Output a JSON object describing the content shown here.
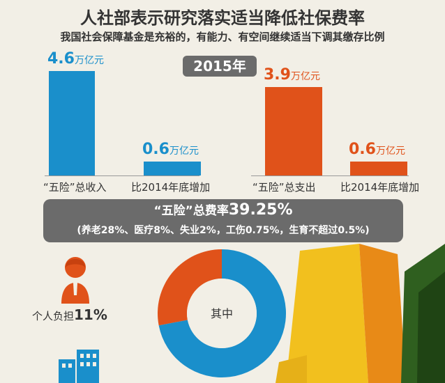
{
  "title": "人社部表示研究落实适当降低社保费率",
  "subtitle": "我国社会保障基金是充裕的，有能力、有空间继续适当下调其缴存比例",
  "year_badge": "2015年",
  "colors": {
    "blue": "#1a8fcb",
    "orange": "#e0521a",
    "gray": "#6b6b6b",
    "background": "#f2efe6"
  },
  "chart_data": [
    {
      "type": "bar",
      "categories": [
        "“五险”总收入",
        "比2014年底增加",
        "“五险”总支出",
        "比2014年底增加"
      ],
      "values": [
        4.6,
        0.6,
        3.9,
        0.6
      ],
      "value_labels": [
        "4.6",
        "0.6",
        "3.9",
        "0.6"
      ],
      "unit": "万亿元",
      "bar_colors": [
        "#1a8fcb",
        "#1a8fcb",
        "#e0521a",
        "#e0521a"
      ]
    },
    {
      "type": "pie",
      "center_label": "其中",
      "slices": [
        {
          "label": "个人负担",
          "value": 11,
          "display": "11%",
          "color": "#e0521a"
        },
        {
          "label": "",
          "value": 28.25,
          "display": "",
          "color": "#1a8fcb"
        }
      ]
    }
  ],
  "rate": {
    "prefix": "“五险”总费率",
    "value": "39.25%",
    "breakdown": "(养老28%、医疗8%、失业2%，工伤0.75%，生育不超过0.5%)"
  },
  "personal": {
    "label": "个人负担",
    "value": "11%"
  }
}
